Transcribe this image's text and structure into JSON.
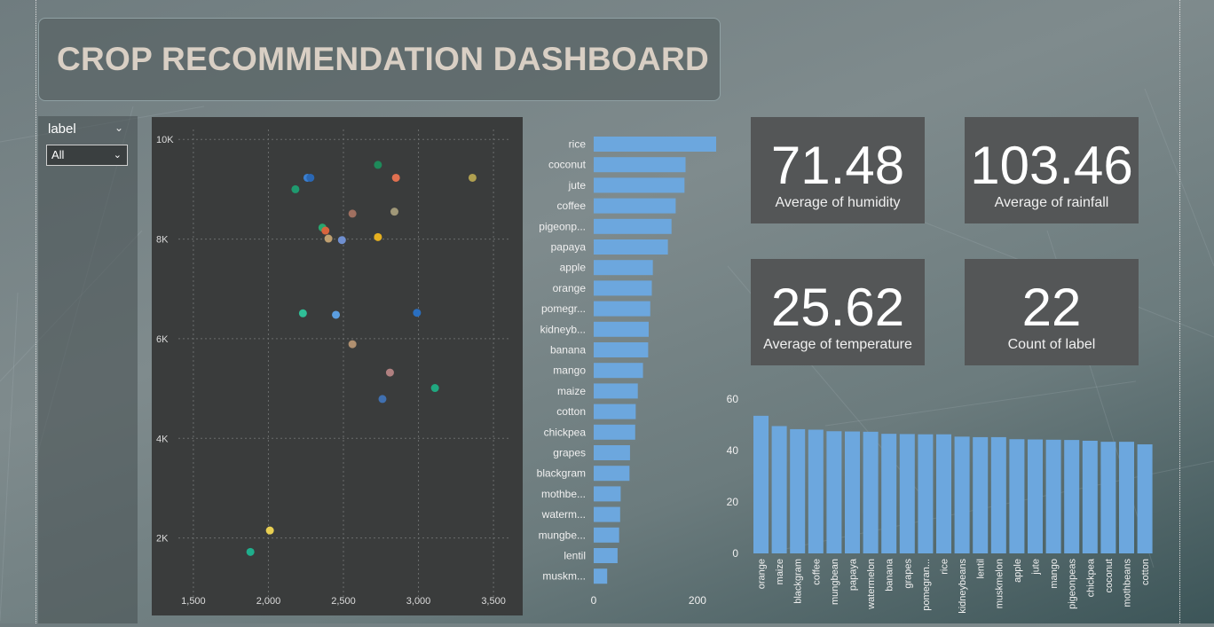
{
  "title": "CROP RECOMMENDATION DASHBOARD",
  "slicer": {
    "label": "label",
    "selected": "All"
  },
  "cards": [
    {
      "value": "71.48",
      "label": "Average of humidity"
    },
    {
      "value": "103.46",
      "label": "Average of rainfall"
    },
    {
      "value": "25.62",
      "label": "Average of temperature"
    },
    {
      "value": "22",
      "label": "Count of label"
    }
  ],
  "colors": {
    "bar": "#6ca7de",
    "panel": "#3a3c3c",
    "card": "#545657"
  },
  "chart_data": [
    {
      "type": "scatter",
      "xlim": [
        1400,
        3600
      ],
      "ylim": [
        800,
        10200
      ],
      "x_ticks": [
        1500,
        2000,
        2500,
        3000,
        3500
      ],
      "x_tick_labels": [
        "1,500",
        "2,000",
        "2,500",
        "3,000",
        "3,500"
      ],
      "y_ticks": [
        2000,
        4000,
        6000,
        8000,
        10000
      ],
      "y_tick_labels": [
        "2K",
        "4K",
        "6K",
        "8K",
        "10K"
      ],
      "grid": true,
      "points": [
        {
          "x": 1880,
          "y": 1720,
          "color": "#1fae8c"
        },
        {
          "x": 2010,
          "y": 2150,
          "color": "#e8cf52"
        },
        {
          "x": 2180,
          "y": 9000,
          "color": "#1f9a6f"
        },
        {
          "x": 2260,
          "y": 9230,
          "color": "#3a7fd0"
        },
        {
          "x": 2280,
          "y": 9230,
          "color": "#2a67b3"
        },
        {
          "x": 2230,
          "y": 6510,
          "color": "#2fbf97"
        },
        {
          "x": 2360,
          "y": 8230,
          "color": "#28a66f"
        },
        {
          "x": 2380,
          "y": 8170,
          "color": "#d8643d"
        },
        {
          "x": 2400,
          "y": 8010,
          "color": "#c0a070"
        },
        {
          "x": 2450,
          "y": 6480,
          "color": "#5b9ee0"
        },
        {
          "x": 2490,
          "y": 7980,
          "color": "#6f8fd0"
        },
        {
          "x": 2560,
          "y": 8510,
          "color": "#a07060"
        },
        {
          "x": 2560,
          "y": 5890,
          "color": "#b09070"
        },
        {
          "x": 2730,
          "y": 9490,
          "color": "#1e8a5a"
        },
        {
          "x": 2730,
          "y": 8040,
          "color": "#e5b020"
        },
        {
          "x": 2760,
          "y": 4790,
          "color": "#4070b0"
        },
        {
          "x": 2810,
          "y": 5320,
          "color": "#b08080"
        },
        {
          "x": 2840,
          "y": 8550,
          "color": "#a09878"
        },
        {
          "x": 2850,
          "y": 9230,
          "color": "#e07050"
        },
        {
          "x": 2990,
          "y": 6520,
          "color": "#2a6fc0"
        },
        {
          "x": 3110,
          "y": 5010,
          "color": "#20a880"
        },
        {
          "x": 3360,
          "y": 9230,
          "color": "#b0a050"
        }
      ]
    },
    {
      "type": "bar",
      "orientation": "horizontal",
      "categories": [
        "rice",
        "coconut",
        "jute",
        "coffee",
        "pigeonp...",
        "papaya",
        "apple",
        "orange",
        "pomegr...",
        "kidneyb...",
        "banana",
        "mango",
        "maize",
        "cotton",
        "chickpea",
        "grapes",
        "blackgram",
        "mothbe...",
        "waterm...",
        "mungbe...",
        "lentil",
        "muskm..."
      ],
      "values": [
        236,
        177,
        175,
        158,
        150,
        143,
        114,
        112,
        109,
        106,
        105,
        95,
        85,
        81,
        80,
        70,
        69,
        52,
        51,
        49,
        46,
        26
      ],
      "xlim": [
        0,
        240
      ],
      "x_ticks": [
        0,
        200
      ],
      "x_tick_labels": [
        "0",
        "200"
      ]
    },
    {
      "type": "bar",
      "orientation": "vertical",
      "categories": [
        "orange",
        "maize",
        "blackgram",
        "coffee",
        "mungbean",
        "papaya",
        "watermelon",
        "banana",
        "grapes",
        "pomegran...",
        "rice",
        "kidneybeans",
        "lentil",
        "muskmelon",
        "apple",
        "jute",
        "mango",
        "pigeonpeas",
        "chickpea",
        "coconut",
        "mothbeans",
        "cotton"
      ],
      "values": [
        53.5,
        49.5,
        48.3,
        48.1,
        47.5,
        47.4,
        47.3,
        46.5,
        46.4,
        46.3,
        46.3,
        45.4,
        45.2,
        45.2,
        44.4,
        44.3,
        44.2,
        44.1,
        43.8,
        43.4,
        43.4,
        42.4
      ],
      "ylim": [
        0,
        60
      ],
      "y_ticks": [
        0,
        20,
        40,
        60
      ],
      "y_tick_labels": [
        "0",
        "20",
        "40",
        "60"
      ]
    }
  ]
}
